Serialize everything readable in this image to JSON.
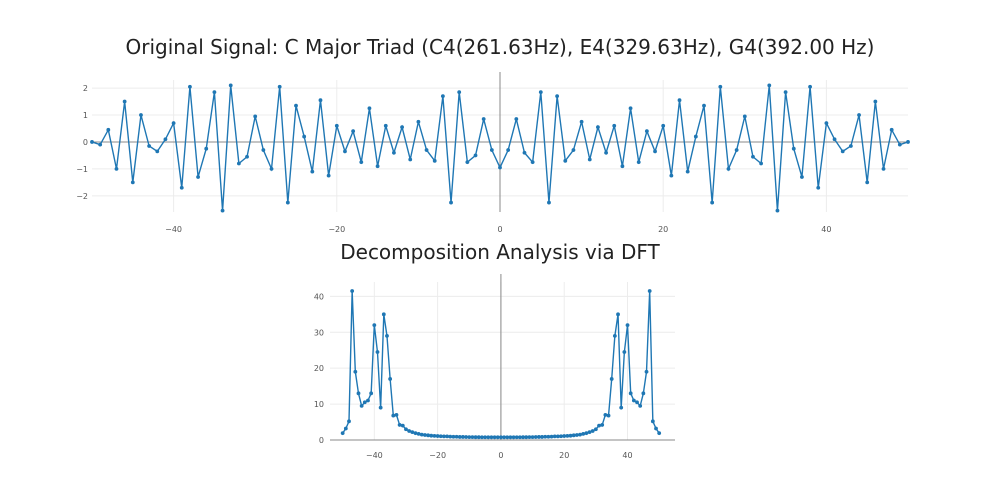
{
  "chart_data": [
    {
      "type": "line",
      "title": "Original Signal: C Major Triad (C4(261.63Hz), E4(329.63Hz), G4(392.00 Hz)",
      "xlabel": "",
      "ylabel": "",
      "xlim": [
        -50,
        50
      ],
      "ylim": [
        -2.6,
        2.3
      ],
      "xticks": [
        -40,
        -20,
        0,
        20,
        40
      ],
      "yticks": [
        -2,
        -1,
        0,
        1,
        2
      ],
      "grid": true,
      "series": [
        {
          "color": "#1f77b4",
          "x_start": -50,
          "x_step": 1,
          "values": [
            0.0,
            -0.1,
            0.45,
            -1.0,
            1.5,
            -1.5,
            1.0,
            -0.15,
            -0.35,
            0.1,
            0.7,
            -1.7,
            2.05,
            -1.3,
            -0.25,
            1.85,
            -2.55,
            2.1,
            -0.8,
            -0.55,
            0.95,
            -0.3,
            -1.0,
            2.05,
            -2.25,
            1.35,
            0.2,
            -1.1,
            1.55,
            -1.25,
            0.6,
            -0.35,
            0.4,
            -0.75,
            1.25,
            -0.9,
            0.6,
            -0.4,
            0.55,
            -0.65,
            0.75,
            -0.3,
            -0.7,
            1.7,
            -2.25,
            1.85,
            -0.75,
            -0.5,
            0.85,
            -0.3,
            -0.95,
            -0.3,
            0.85,
            -0.4,
            -0.75,
            1.85,
            -2.25,
            1.7,
            -0.7,
            -0.3,
            0.75,
            -0.65,
            0.55,
            -0.4,
            0.6,
            -0.9,
            1.25,
            -0.75,
            0.4,
            -0.35,
            0.6,
            -1.25,
            1.55,
            -1.1,
            0.2,
            1.35,
            -2.25,
            2.05,
            -1.0,
            -0.3,
            0.95,
            -0.55,
            -0.8,
            2.1,
            -2.55,
            1.85,
            -0.25,
            -1.3,
            2.05,
            -1.7,
            0.7,
            0.1,
            -0.35,
            -0.15,
            1.0,
            -1.5,
            1.5,
            -1.0,
            0.45,
            -0.1,
            0.0
          ]
        }
      ]
    },
    {
      "type": "line",
      "title": "Decomposition Analysis via DFT",
      "xlabel": "",
      "ylabel": "",
      "xlim": [
        -54,
        55
      ],
      "ylim": [
        0,
        44
      ],
      "xticks": [
        -40,
        -20,
        0,
        20,
        40
      ],
      "yticks": [
        0,
        10,
        20,
        30,
        40
      ],
      "grid": true,
      "series": [
        {
          "color": "#1f77b4",
          "x_start": -50,
          "x_step": 1,
          "values": [
            1.9,
            3.2,
            5.2,
            41.5,
            19.0,
            13.0,
            9.5,
            10.5,
            11.0,
            13.0,
            32.0,
            24.5,
            9.0,
            35.0,
            29.0,
            17.0,
            6.8,
            7.0,
            4.2,
            4.0,
            3.0,
            2.5,
            2.2,
            1.9,
            1.7,
            1.5,
            1.4,
            1.3,
            1.2,
            1.15,
            1.1,
            1.05,
            1.0,
            1.0,
            0.95,
            0.9,
            0.9,
            0.85,
            0.85,
            0.82,
            0.8,
            0.8,
            0.78,
            0.78,
            0.76,
            0.76,
            0.75,
            0.75,
            0.75,
            0.75,
            0.75,
            0.75,
            0.75,
            0.75,
            0.75,
            0.76,
            0.76,
            0.78,
            0.78,
            0.8,
            0.8,
            0.82,
            0.85,
            0.85,
            0.9,
            0.9,
            0.95,
            1.0,
            1.0,
            1.05,
            1.1,
            1.15,
            1.2,
            1.3,
            1.4,
            1.5,
            1.7,
            1.9,
            2.2,
            2.5,
            3.0,
            4.0,
            4.2,
            7.0,
            6.8,
            17.0,
            29.0,
            35.0,
            9.0,
            24.5,
            32.0,
            13.0,
            11.0,
            10.5,
            9.5,
            13.0,
            19.0,
            41.5,
            5.2,
            3.2,
            1.9
          ]
        }
      ]
    }
  ]
}
